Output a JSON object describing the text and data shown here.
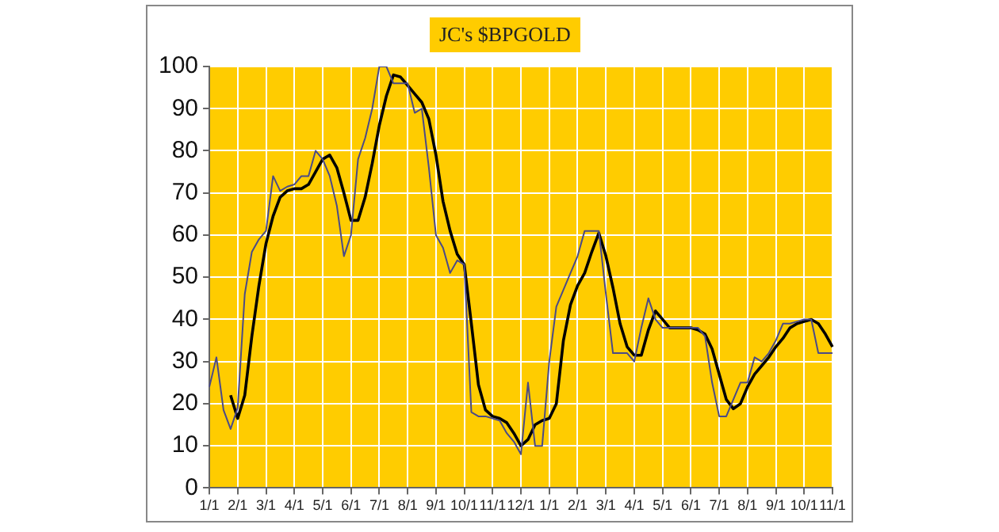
{
  "chart_data": {
    "type": "line",
    "title": "JC's $BPGOLD",
    "categories": [
      "1/1",
      null,
      null,
      null,
      "2/1",
      null,
      null,
      null,
      "3/1",
      null,
      null,
      null,
      "4/1",
      null,
      null,
      null,
      "5/1",
      null,
      null,
      null,
      "6/1",
      null,
      null,
      null,
      "7/1",
      null,
      null,
      null,
      "8/1",
      null,
      null,
      null,
      "9/1",
      null,
      null,
      null,
      "10/1",
      null,
      null,
      null,
      "11/1",
      null,
      null,
      null,
      "12/1",
      null,
      null,
      null,
      "1/1",
      null,
      null,
      null,
      "2/1",
      null,
      null,
      null,
      "3/1",
      null,
      null,
      null,
      "4/1",
      null,
      null,
      null,
      "5/1",
      null,
      null,
      null,
      "6/1",
      null,
      null,
      null,
      "7/1",
      null,
      null,
      null,
      "8/1",
      null,
      null,
      null,
      "9/1",
      null,
      null,
      null,
      "10/1",
      null,
      null,
      null,
      "11/1"
    ],
    "ylim": [
      0,
      100
    ],
    "yticks": [
      0,
      10,
      20,
      30,
      40,
      50,
      60,
      70,
      80,
      90,
      100
    ],
    "grid": true,
    "legend": false,
    "marker": "none",
    "line_style": "solid",
    "series": [
      {
        "color": "#4a4a88",
        "values": [
          24,
          31,
          18.5,
          14,
          19,
          46,
          56,
          59,
          61,
          74,
          70.5,
          71.5,
          72,
          74,
          74,
          80,
          78,
          74,
          67,
          55,
          60,
          78,
          83,
          90,
          100,
          100,
          96,
          96,
          96,
          89,
          90,
          76,
          60,
          57,
          51,
          54,
          53,
          18,
          17,
          17,
          16.5,
          16,
          13,
          11,
          8,
          25,
          10,
          10,
          30,
          43,
          47,
          51,
          55,
          61,
          61,
          61,
          46,
          32,
          32,
          32,
          30,
          38,
          45,
          40,
          38,
          38,
          38,
          38,
          38,
          38,
          36,
          25,
          17,
          17,
          21,
          25,
          25,
          31,
          30,
          32,
          35,
          39,
          39,
          39.5,
          40,
          40,
          32,
          32,
          32
        ]
      },
      {
        "color": "#000000",
        "values": [
          null,
          null,
          null,
          22,
          16.5,
          22,
          36,
          48,
          58,
          64.5,
          69,
          70.5,
          71,
          71,
          72,
          75,
          78,
          79,
          76,
          70,
          63.5,
          63.5,
          69,
          77,
          86,
          93,
          98,
          97.5,
          95.5,
          93.5,
          91.5,
          87.5,
          79,
          68,
          61,
          55.5,
          53,
          39,
          24.5,
          18.5,
          17,
          16.5,
          15.5,
          13,
          10,
          11.5,
          15,
          16,
          16.5,
          20,
          35,
          43.5,
          48,
          51,
          56,
          60.5,
          55,
          47.5,
          39,
          33.5,
          31.5,
          31.5,
          37.5,
          42,
          40,
          38,
          38,
          38,
          38,
          37.5,
          36.5,
          33,
          27,
          21,
          18.8,
          20,
          24,
          27,
          29,
          31,
          33.5,
          35.5,
          38,
          39,
          39.5,
          40,
          39,
          36.5,
          33.5
        ]
      }
    ]
  }
}
